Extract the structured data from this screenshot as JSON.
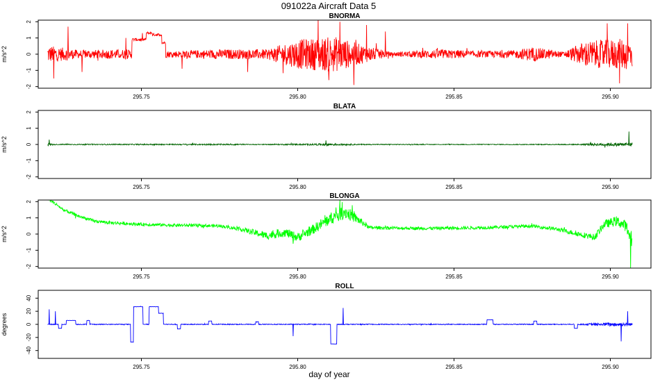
{
  "figure": {
    "title": "091022a   Aircraft Data 5",
    "xlabel": "day of year"
  },
  "chart_data": [
    {
      "type": "line",
      "title": "BNORMA",
      "ylabel": "m/s^2",
      "color": "#ff0000",
      "xlim": [
        295.717,
        295.913
      ],
      "ylim": [
        -2.1,
        2.1
      ],
      "xticks": [
        295.75,
        295.8,
        295.85,
        295.9
      ],
      "yticks": [
        -2,
        -1,
        0,
        1,
        2
      ],
      "x_range": [
        295.72,
        295.907
      ],
      "noise": [
        [
          295.72,
          0.55
        ],
        [
          295.73,
          0.25
        ],
        [
          295.742,
          0.3
        ],
        [
          295.76,
          0.2
        ],
        [
          295.775,
          0.3
        ],
        [
          295.79,
          0.3
        ],
        [
          295.8,
          0.9
        ],
        [
          295.812,
          1.1
        ],
        [
          295.822,
          0.5
        ],
        [
          295.83,
          0.12
        ],
        [
          295.845,
          0.3
        ],
        [
          295.86,
          0.2
        ],
        [
          295.87,
          0.25
        ],
        [
          295.875,
          0.45
        ],
        [
          295.885,
          0.15
        ],
        [
          295.892,
          0.8
        ],
        [
          295.907,
          1.0
        ]
      ],
      "segments": [
        [
          295.747,
          295.7515,
          0.9
        ],
        [
          295.7515,
          295.7535,
          1.3
        ],
        [
          295.7535,
          295.7565,
          1.2
        ],
        [
          295.7565,
          295.7578,
          0.7
        ]
      ],
      "spikes": [
        [
          295.722,
          -1.5
        ],
        [
          295.7265,
          1.7
        ],
        [
          295.731,
          -1.1
        ],
        [
          295.745,
          1.0
        ],
        [
          295.763,
          -0.9
        ],
        [
          295.784,
          -1.1
        ],
        [
          295.8065,
          2.2
        ],
        [
          295.81,
          -1.6
        ],
        [
          295.8135,
          2.0
        ],
        [
          295.818,
          -1.9
        ],
        [
          295.822,
          1.8
        ],
        [
          295.828,
          1.4
        ],
        [
          295.899,
          1.9
        ],
        [
          295.903,
          -1.8
        ],
        [
          295.9055,
          1.9
        ]
      ]
    },
    {
      "type": "line",
      "title": "BLATA",
      "ylabel": "m/s^2",
      "color": "#006400",
      "xlim": [
        295.717,
        295.913
      ],
      "ylim": [
        -2.1,
        2.1
      ],
      "xticks": [
        295.75,
        295.8,
        295.85,
        295.9
      ],
      "yticks": [
        -2,
        -1,
        0,
        1,
        2
      ],
      "x_range": [
        295.72,
        295.907
      ],
      "noise": [
        [
          295.72,
          0.12
        ],
        [
          295.722,
          0.03
        ],
        [
          295.78,
          0.04
        ],
        [
          295.785,
          0.02
        ],
        [
          295.805,
          0.05
        ],
        [
          295.81,
          0.08
        ],
        [
          295.82,
          0.03
        ],
        [
          295.845,
          0.02
        ],
        [
          295.89,
          0.03
        ],
        [
          295.895,
          0.08
        ],
        [
          295.907,
          0.12
        ]
      ],
      "segments": [],
      "spikes": [
        [
          295.7205,
          0.3
        ],
        [
          295.809,
          0.25
        ],
        [
          295.906,
          0.8
        ]
      ]
    },
    {
      "type": "line",
      "title": "BLONGA",
      "ylabel": "m/s^2",
      "color": "#00ff00",
      "xlim": [
        295.717,
        295.913
      ],
      "ylim": [
        -2.1,
        2.1
      ],
      "xticks": [
        295.75,
        295.8,
        295.85,
        295.9
      ],
      "yticks": [
        -2,
        -1,
        0,
        1,
        2
      ],
      "x_range": [
        295.72,
        295.907
      ],
      "base": [
        [
          295.72,
          2.2
        ],
        [
          295.723,
          1.8
        ],
        [
          295.725,
          1.5
        ],
        [
          295.73,
          1.1
        ],
        [
          295.735,
          0.8
        ],
        [
          295.74,
          0.7
        ],
        [
          295.75,
          0.6
        ],
        [
          295.76,
          0.55
        ],
        [
          295.775,
          0.5
        ],
        [
          295.782,
          0.3
        ],
        [
          295.79,
          -0.1
        ],
        [
          295.796,
          0.1
        ],
        [
          295.8,
          -0.2
        ],
        [
          295.805,
          0.3
        ],
        [
          295.81,
          0.9
        ],
        [
          295.815,
          1.4
        ],
        [
          295.82,
          0.8
        ],
        [
          295.823,
          0.4
        ],
        [
          295.84,
          0.35
        ],
        [
          295.86,
          0.4
        ],
        [
          295.875,
          0.5
        ],
        [
          295.883,
          0.3
        ],
        [
          295.89,
          0.0
        ],
        [
          295.895,
          -0.2
        ],
        [
          295.898,
          0.6
        ],
        [
          295.902,
          0.8
        ],
        [
          295.905,
          0.5
        ],
        [
          295.907,
          -0.5
        ]
      ],
      "noise": [
        [
          295.72,
          0.1
        ],
        [
          295.78,
          0.1
        ],
        [
          295.79,
          0.25
        ],
        [
          295.805,
          0.3
        ],
        [
          295.815,
          0.45
        ],
        [
          295.823,
          0.1
        ],
        [
          295.88,
          0.1
        ],
        [
          295.895,
          0.2
        ],
        [
          295.905,
          0.35
        ]
      ],
      "segments": [],
      "spikes": [
        [
          295.9065,
          -2.2
        ],
        [
          295.8135,
          2.1
        ],
        [
          295.7985,
          -0.6
        ]
      ]
    },
    {
      "type": "line",
      "title": "ROLL",
      "ylabel": "degrees",
      "color": "#0000ff",
      "xlim": [
        295.717,
        295.913
      ],
      "ylim": [
        -52,
        52
      ],
      "xticks": [
        295.75,
        295.8,
        295.85,
        295.9
      ],
      "yticks": [
        -40,
        -20,
        0,
        20,
        40
      ],
      "x_range": [
        295.72,
        295.907
      ],
      "noise": [
        [
          295.72,
          0.6
        ],
        [
          295.89,
          0.6
        ],
        [
          295.895,
          2.0
        ],
        [
          295.902,
          3.0
        ],
        [
          295.907,
          2.0
        ]
      ],
      "segments": [
        [
          295.7235,
          295.7245,
          -6
        ],
        [
          295.726,
          295.729,
          6
        ],
        [
          295.7325,
          295.7335,
          6
        ],
        [
          295.7465,
          295.7475,
          -27
        ],
        [
          295.7475,
          295.7505,
          27
        ],
        [
          295.7505,
          295.7515,
          0
        ],
        [
          295.7525,
          295.7555,
          27
        ],
        [
          295.7555,
          295.757,
          17
        ],
        [
          295.7575,
          295.758,
          0
        ],
        [
          295.7615,
          295.7625,
          -7
        ],
        [
          295.7715,
          295.7725,
          5
        ],
        [
          295.7865,
          295.7875,
          4
        ],
        [
          295.8105,
          295.8125,
          -30
        ],
        [
          295.8605,
          295.8625,
          7
        ],
        [
          295.8755,
          295.8765,
          5
        ],
        [
          295.8885,
          295.8895,
          -6
        ]
      ],
      "spikes": [
        [
          295.7205,
          23
        ],
        [
          295.7225,
          20
        ],
        [
          295.7985,
          -18
        ],
        [
          295.8145,
          25
        ],
        [
          295.9035,
          -26
        ],
        [
          295.9055,
          20
        ]
      ]
    }
  ]
}
